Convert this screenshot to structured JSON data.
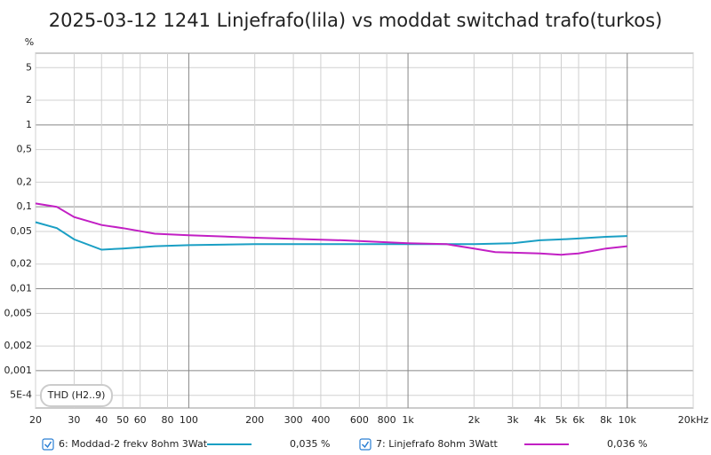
{
  "chart_data": {
    "type": "line",
    "title": "2025-03-12 1241 Linjefrafo(lila) vs moddat switchad trafo(turkos)",
    "y_unit": "%",
    "annotation": "THD (H2..9)",
    "log_x": true,
    "log_y": true,
    "grid": true,
    "xlim": [
      20,
      20000
    ],
    "ylim": [
      0.00035,
      7.5
    ],
    "xticks": [
      20,
      30,
      40,
      50,
      60,
      80,
      100,
      200,
      300,
      400,
      600,
      800,
      {
        "value": 1000,
        "label": "1k"
      },
      {
        "value": 2000,
        "label": "2k"
      },
      {
        "value": 3000,
        "label": "3k"
      },
      {
        "value": 4000,
        "label": "4k"
      },
      {
        "value": 5000,
        "label": "5k"
      },
      {
        "value": 6000,
        "label": "6k"
      },
      {
        "value": 8000,
        "label": "8k"
      },
      {
        "value": 10000,
        "label": "10k"
      },
      {
        "value": 20000,
        "label": "20kHz"
      }
    ],
    "yticks": [
      5,
      2,
      1,
      {
        "value": 0.5,
        "label": "0,5"
      },
      {
        "value": 0.2,
        "label": "0,2"
      },
      {
        "value": 0.1,
        "label": "0,1"
      },
      {
        "value": 0.05,
        "label": "0,05"
      },
      {
        "value": 0.02,
        "label": "0,02"
      },
      {
        "value": 0.01,
        "label": "0,01"
      },
      {
        "value": 0.005,
        "label": "0,005"
      },
      {
        "value": 0.002,
        "label": "0,002"
      },
      {
        "value": 0.001,
        "label": "0,001"
      },
      {
        "value": 0.0005,
        "label": "5E-4"
      }
    ],
    "series": [
      {
        "name": "6: Moddad-2 frekv 8ohm 3Wat",
        "color": "#1a9fc4",
        "legend_value": "0,035 %",
        "x": [
          20,
          25,
          30,
          40,
          50,
          70,
          100,
          200,
          500,
          1000,
          2000,
          3000,
          4000,
          5000,
          6000,
          8000,
          10000
        ],
        "values": [
          0.065,
          0.055,
          0.04,
          0.03,
          0.031,
          0.033,
          0.034,
          0.035,
          0.035,
          0.035,
          0.035,
          0.036,
          0.039,
          0.04,
          0.041,
          0.043,
          0.044
        ]
      },
      {
        "name": "7: Linjefrafo 8ohm 3Watt",
        "color": "#c21fc4",
        "legend_value": "0,036 %",
        "x": [
          20,
          25,
          30,
          40,
          50,
          70,
          100,
          200,
          500,
          1000,
          1500,
          2000,
          2500,
          4000,
          5000,
          6000,
          8000,
          10000
        ],
        "values": [
          0.11,
          0.1,
          0.075,
          0.06,
          0.055,
          0.047,
          0.045,
          0.042,
          0.039,
          0.036,
          0.035,
          0.031,
          0.028,
          0.027,
          0.026,
          0.027,
          0.031,
          0.033
        ]
      }
    ]
  }
}
